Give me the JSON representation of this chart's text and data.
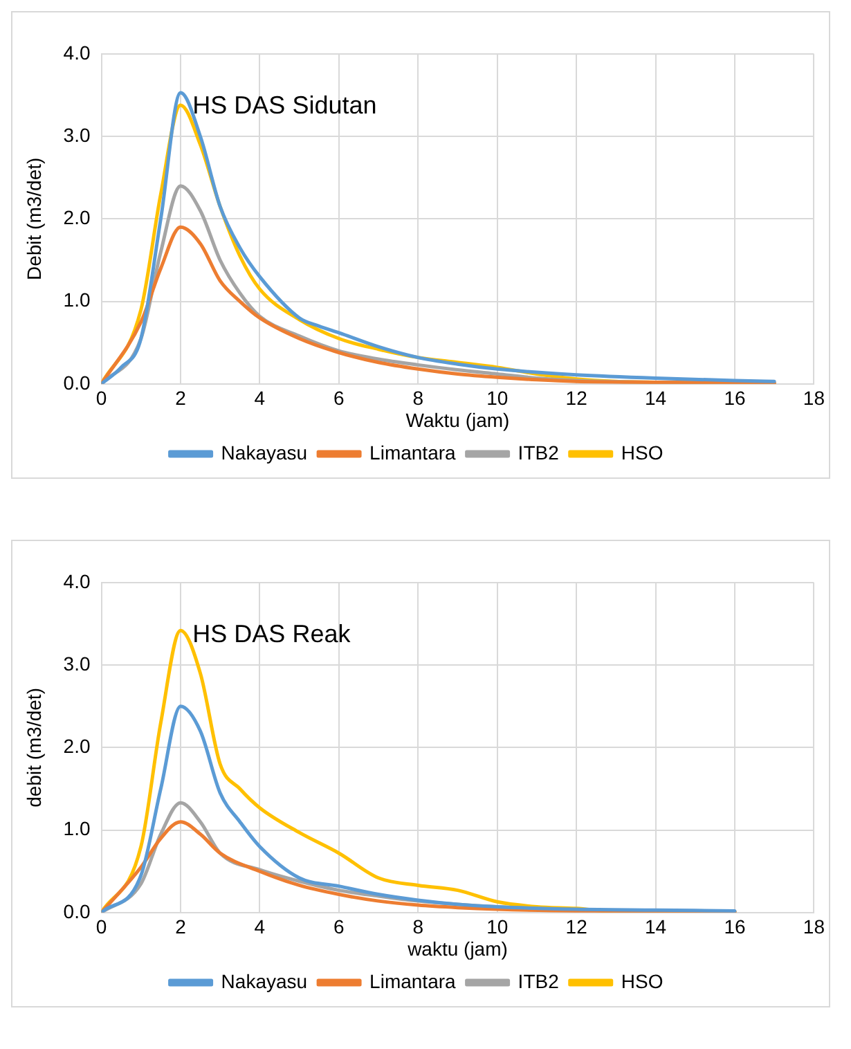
{
  "chart_data": [
    {
      "type": "line",
      "title": "HS DAS Sidutan",
      "xlabel": "Waktu (jam)",
      "ylabel": "Debit (m3/det)",
      "xlim": [
        0,
        18
      ],
      "xticks": [
        0,
        2,
        4,
        6,
        8,
        10,
        12,
        14,
        16,
        18
      ],
      "ylim": [
        0,
        4
      ],
      "yticks": [
        {
          "value": 0,
          "label": "0.0"
        },
        {
          "value": 1,
          "label": "1.0"
        },
        {
          "value": 2,
          "label": "2.0"
        },
        {
          "value": 3,
          "label": "3.0"
        },
        {
          "value": 4,
          "label": "4.0"
        }
      ],
      "grid": true,
      "legend": "bottom",
      "marker": "none",
      "line_style": "solid",
      "series": [
        {
          "name": "Nakayasu",
          "color": "#5b9bd5",
          "x": [
            0,
            0.5,
            1,
            1.5,
            2,
            2.5,
            3,
            3.5,
            4,
            5,
            5.5,
            6,
            7,
            8,
            9,
            10,
            11,
            12,
            14,
            16,
            17
          ],
          "values": [
            0,
            0.2,
            0.55,
            2.0,
            3.53,
            3.0,
            2.15,
            1.65,
            1.3,
            0.8,
            0.7,
            0.62,
            0.45,
            0.32,
            0.24,
            0.18,
            0.14,
            0.11,
            0.07,
            0.04,
            0.03
          ]
        },
        {
          "name": "Limantara",
          "color": "#ed7d31",
          "x": [
            0,
            1,
            1.5,
            2,
            2.5,
            3,
            3.5,
            4,
            5,
            6,
            7,
            8,
            9,
            10,
            11,
            12,
            14,
            17
          ],
          "values": [
            0,
            0.75,
            1.4,
            1.9,
            1.7,
            1.25,
            1.0,
            0.8,
            0.55,
            0.38,
            0.26,
            0.18,
            0.12,
            0.08,
            0.05,
            0.03,
            0.02,
            0.01
          ]
        },
        {
          "name": "ITB2",
          "color": "#a5a5a5",
          "x": [
            0,
            1,
            1.5,
            2,
            2.5,
            3,
            3.5,
            4,
            5,
            6,
            7,
            8,
            9,
            10,
            11,
            12,
            14,
            17
          ],
          "values": [
            0,
            0.55,
            1.6,
            2.4,
            2.1,
            1.5,
            1.1,
            0.82,
            0.58,
            0.4,
            0.3,
            0.23,
            0.17,
            0.12,
            0.07,
            0.04,
            0.02,
            0.01
          ]
        },
        {
          "name": "HSO",
          "color": "#ffc000",
          "x": [
            0,
            1,
            1.5,
            2,
            2.5,
            3,
            3.5,
            4,
            5,
            6,
            7,
            8,
            9,
            10,
            11,
            12,
            13,
            14,
            17
          ],
          "values": [
            0,
            0.9,
            2.3,
            3.38,
            2.9,
            2.15,
            1.55,
            1.15,
            0.78,
            0.55,
            0.42,
            0.32,
            0.26,
            0.2,
            0.12,
            0.06,
            0.03,
            0.02,
            0.01
          ]
        }
      ]
    },
    {
      "type": "line",
      "title": "HS DAS Reak",
      "xlabel": "waktu (jam)",
      "ylabel": "debit (m3/det)",
      "xlim": [
        0,
        18
      ],
      "xticks": [
        0,
        2,
        4,
        6,
        8,
        10,
        12,
        14,
        16,
        18
      ],
      "ylim": [
        0,
        4
      ],
      "yticks": [
        {
          "value": 0,
          "label": "0.0"
        },
        {
          "value": 1,
          "label": "1.0"
        },
        {
          "value": 2,
          "label": "2.0"
        },
        {
          "value": 3,
          "label": "3.0"
        },
        {
          "value": 4,
          "label": "4.0"
        }
      ],
      "grid": true,
      "legend": "bottom",
      "marker": "none",
      "line_style": "solid",
      "series": [
        {
          "name": "Nakayasu",
          "color": "#5b9bd5",
          "x": [
            0,
            1,
            1.5,
            2,
            2.5,
            3,
            3.5,
            4,
            5,
            6,
            7,
            8,
            9,
            10,
            12,
            14,
            16
          ],
          "values": [
            0,
            0.45,
            1.5,
            2.5,
            2.2,
            1.45,
            1.1,
            0.8,
            0.42,
            0.32,
            0.22,
            0.15,
            0.1,
            0.07,
            0.04,
            0.03,
            0.02
          ]
        },
        {
          "name": "Limantara",
          "color": "#ed7d31",
          "x": [
            0,
            1,
            1.5,
            2,
            2.5,
            3,
            4,
            5,
            6,
            7,
            8,
            9,
            10,
            12,
            16
          ],
          "values": [
            0,
            0.55,
            0.9,
            1.1,
            0.95,
            0.72,
            0.5,
            0.33,
            0.22,
            0.14,
            0.09,
            0.06,
            0.04,
            0.02,
            0.01
          ]
        },
        {
          "name": "ITB2",
          "color": "#a5a5a5",
          "x": [
            0,
            1,
            1.5,
            2,
            2.5,
            3,
            4,
            5,
            6,
            7,
            8,
            9,
            10,
            12,
            16
          ],
          "values": [
            0,
            0.35,
            0.95,
            1.33,
            1.1,
            0.72,
            0.52,
            0.38,
            0.27,
            0.2,
            0.14,
            0.1,
            0.07,
            0.03,
            0.01
          ]
        },
        {
          "name": "HSO",
          "color": "#ffc000",
          "x": [
            0,
            1,
            1.5,
            2,
            2.5,
            3,
            3.5,
            4,
            5,
            6,
            7,
            8,
            9,
            10,
            11,
            12,
            13,
            16
          ],
          "values": [
            0,
            0.8,
            2.3,
            3.42,
            2.9,
            1.8,
            1.5,
            1.27,
            0.97,
            0.72,
            0.42,
            0.33,
            0.27,
            0.13,
            0.07,
            0.05,
            0.01,
            0.01
          ]
        }
      ]
    }
  ]
}
